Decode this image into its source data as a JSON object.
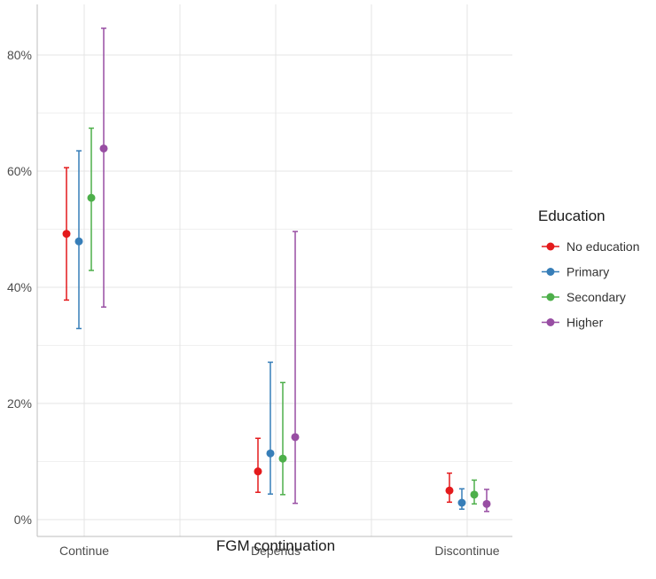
{
  "chart_data": {
    "type": "scatter",
    "xlabel": "FGM continuation",
    "ylabel": "",
    "categories": [
      "Continue",
      "Depends",
      "Discontinue"
    ],
    "ylim": [
      0,
      0.85
    ],
    "y_ticks": [
      0,
      0.2,
      0.4,
      0.6,
      0.8
    ],
    "y_tick_labels": [
      "0%",
      "20%",
      "40%",
      "60%",
      "80%"
    ],
    "grid": true,
    "legend": {
      "title": "Education",
      "position": "right"
    },
    "series": [
      {
        "name": "No education",
        "color": "#e41a1c",
        "values": [
          0.492,
          0.083,
          0.05
        ],
        "lower": [
          0.378,
          0.047,
          0.03
        ],
        "upper": [
          0.606,
          0.14,
          0.08
        ]
      },
      {
        "name": "Primary",
        "color": "#377eb8",
        "values": [
          0.479,
          0.114,
          0.029
        ],
        "lower": [
          0.329,
          0.044,
          0.018
        ],
        "upper": [
          0.635,
          0.271,
          0.053
        ]
      },
      {
        "name": "Secondary",
        "color": "#4daf4a",
        "values": [
          0.554,
          0.105,
          0.043
        ],
        "lower": [
          0.429,
          0.043,
          0.027
        ],
        "upper": [
          0.674,
          0.236,
          0.068
        ]
      },
      {
        "name": "Higher",
        "color": "#984ea3",
        "values": [
          0.639,
          0.142,
          0.027
        ],
        "lower": [
          0.366,
          0.028,
          0.014
        ],
        "upper": [
          0.846,
          0.496,
          0.052
        ]
      }
    ]
  }
}
